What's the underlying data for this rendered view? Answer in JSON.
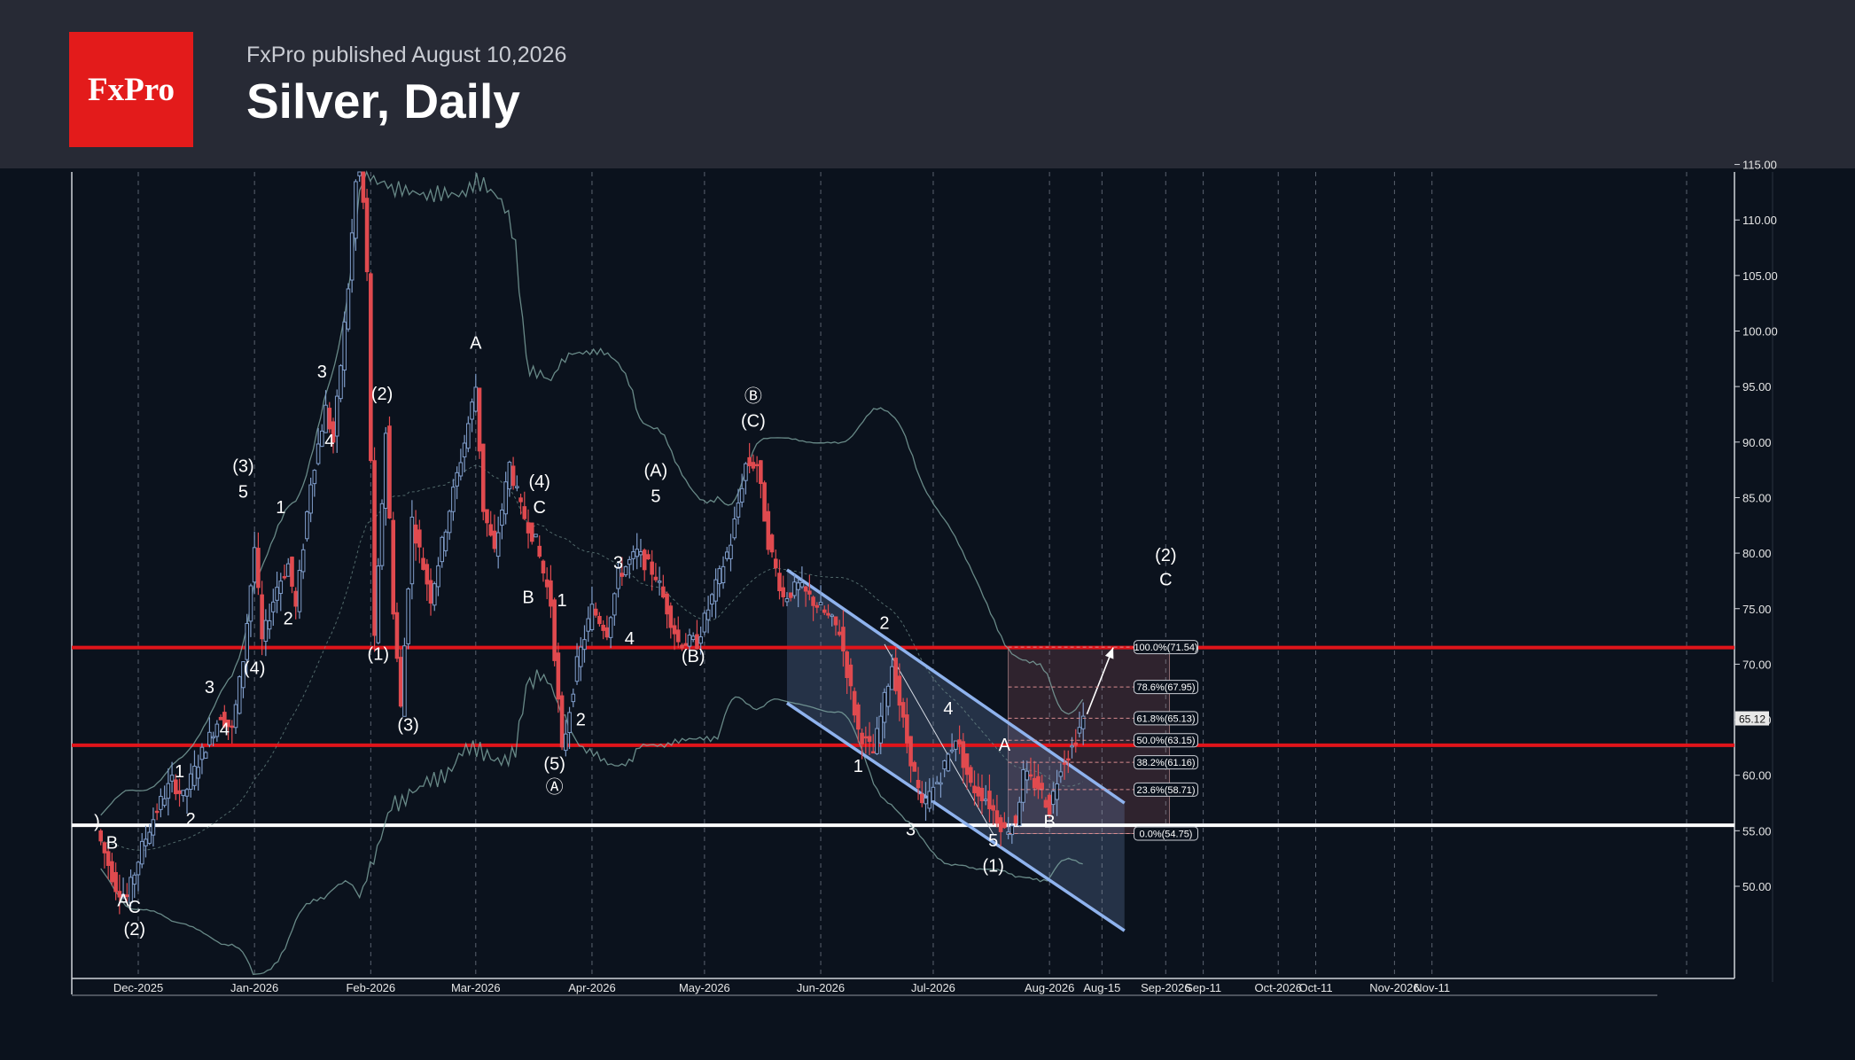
{
  "header": {
    "logo_text": "FxPro",
    "published": "FxPro published August 10,2026",
    "title": "Silver, Daily"
  },
  "colors": {
    "background": "#0b121d",
    "header": "#272a35",
    "brand_red": "#e31b1b",
    "bull_candle": "#7f9cc9",
    "bear_candle": "#e04a4f",
    "level_red": "#e0141a",
    "level_white": "#ffffff",
    "channel": "#8fb3ee"
  },
  "chart_data": {
    "type": "candlestick",
    "title": "Silver, Daily",
    "ylim": [
      45,
      117.5
    ],
    "y_ticks": [
      "115.00",
      "110.00",
      "105.00",
      "100.00",
      "95.00",
      "90.00",
      "85.00",
      "80.00",
      "75.00",
      "70.00",
      "65.00",
      "60.00",
      "55.00",
      "50.00"
    ],
    "x_ticks": [
      {
        "label": "Dec-2025",
        "date": "2025-12-01"
      },
      {
        "label": "Jan-2026",
        "date": "2026-01-01"
      },
      {
        "label": "Feb-2026",
        "date": "2026-02-01"
      },
      {
        "label": "Mar-2026",
        "date": "2026-03-01"
      },
      {
        "label": "Apr-2026",
        "date": "2026-04-01"
      },
      {
        "label": "May-2026",
        "date": "2026-05-01"
      },
      {
        "label": "Jun-2026",
        "date": "2026-06-01"
      },
      {
        "label": "Jul-2026",
        "date": "2026-07-01"
      },
      {
        "label": "Aug-2026",
        "date": "2026-08-01"
      },
      {
        "label": "Aug-15",
        "date": "2026-08-15"
      },
      {
        "label": "Sep-2026",
        "date": "2026-09-01"
      },
      {
        "label": "Sep-11",
        "date": "2026-09-11"
      },
      {
        "label": "Oct-2026",
        "date": "2026-10-01"
      },
      {
        "label": "Oct-11",
        "date": "2026-10-11"
      },
      {
        "label": "Nov-2026",
        "date": "2026-11-01"
      },
      {
        "label": "Nov-11",
        "date": "2026-11-11"
      }
    ],
    "price_path": [
      [
        "2025-11-21",
        54
      ],
      [
        "2025-11-25",
        50
      ],
      [
        "2025-11-28",
        49
      ],
      [
        "2025-12-02",
        53.5
      ],
      [
        "2025-12-06",
        57
      ],
      [
        "2025-12-10",
        59.5
      ],
      [
        "2025-12-13",
        58
      ],
      [
        "2025-12-18",
        62
      ],
      [
        "2025-12-23",
        65.5
      ],
      [
        "2025-12-26",
        64
      ],
      [
        "2025-12-29",
        70.5
      ],
      [
        "2026-01-01",
        80.5
      ],
      [
        "2026-01-03",
        72
      ],
      [
        "2026-01-07",
        77
      ],
      [
        "2026-01-10",
        79
      ],
      [
        "2026-01-12",
        75
      ],
      [
        "2026-01-16",
        86.5
      ],
      [
        "2026-01-20",
        93
      ],
      [
        "2026-01-22",
        90
      ],
      [
        "2026-01-26",
        104
      ],
      [
        "2026-01-29",
        118
      ],
      [
        "2026-01-31",
        105
      ],
      [
        "2026-02-02",
        72
      ],
      [
        "2026-02-05",
        91
      ],
      [
        "2026-02-07",
        75
      ],
      [
        "2026-02-09",
        66
      ],
      [
        "2026-02-12",
        83
      ],
      [
        "2026-02-17",
        76
      ],
      [
        "2026-02-22",
        84
      ],
      [
        "2026-02-26",
        90
      ],
      [
        "2026-03-01",
        95
      ],
      [
        "2026-03-03",
        84
      ],
      [
        "2026-03-06",
        80
      ],
      [
        "2026-03-10",
        88
      ],
      [
        "2026-03-13",
        84
      ],
      [
        "2026-03-17",
        81
      ],
      [
        "2026-03-21",
        75.5
      ],
      [
        "2026-03-24",
        62
      ],
      [
        "2026-03-28",
        70
      ],
      [
        "2026-04-01",
        75
      ],
      [
        "2026-04-05",
        73
      ],
      [
        "2026-04-08",
        78
      ],
      [
        "2026-04-13",
        80
      ],
      [
        "2026-04-18",
        78
      ],
      [
        "2026-04-24",
        72
      ],
      [
        "2026-04-29",
        72
      ],
      [
        "2026-05-03",
        76
      ],
      [
        "2026-05-08",
        81
      ],
      [
        "2026-05-12",
        88
      ],
      [
        "2026-05-15",
        88
      ],
      [
        "2026-05-18",
        81
      ],
      [
        "2026-05-22",
        76
      ],
      [
        "2026-05-26",
        77
      ],
      [
        "2026-06-01",
        75
      ],
      [
        "2026-06-06",
        73
      ],
      [
        "2026-06-11",
        64
      ],
      [
        "2026-06-15",
        62
      ],
      [
        "2026-06-20",
        70
      ],
      [
        "2026-06-24",
        63
      ],
      [
        "2026-06-28",
        57
      ],
      [
        "2026-07-03",
        60
      ],
      [
        "2026-07-07",
        63.5
      ],
      [
        "2026-07-11",
        59
      ],
      [
        "2026-07-15",
        58
      ],
      [
        "2026-07-20",
        55
      ],
      [
        "2026-07-23",
        56
      ],
      [
        "2026-07-25",
        60
      ],
      [
        "2026-07-29",
        59
      ],
      [
        "2026-08-01",
        57
      ],
      [
        "2026-08-04",
        61
      ],
      [
        "2026-08-07",
        62.5
      ],
      [
        "2026-08-10",
        65.12
      ]
    ],
    "levels": [
      {
        "price": 71.5,
        "color": "red"
      },
      {
        "price": 62.7,
        "color": "red"
      },
      {
        "price": 55.5,
        "color": "white"
      }
    ],
    "current_price": "65.12",
    "fibonacci": [
      {
        "label": "100.0%(71.54)",
        "price": 71.54
      },
      {
        "label": "78.6%(67.95)",
        "price": 67.95
      },
      {
        "label": "61.8%(65.13)",
        "price": 65.13
      },
      {
        "label": "50.0%(63.15)",
        "price": 63.15
      },
      {
        "label": "38.2%(61.16)",
        "price": 61.16
      },
      {
        "label": "23.6%(58.71)",
        "price": 58.71
      },
      {
        "label": "0.0%(54.75)",
        "price": 54.75
      }
    ],
    "fib_zone": {
      "start": "2026-07-21",
      "end": "2026-09-02",
      "top": 71.54,
      "bottom": 54.75
    },
    "channel": {
      "upper": [
        [
          "2026-05-23",
          78.5
        ],
        [
          "2026-08-21",
          57.5
        ]
      ],
      "lower": [
        [
          "2026-05-23",
          66.5
        ],
        [
          "2026-08-21",
          46
        ]
      ]
    },
    "projection_arrow": [
      [
        "2026-08-11",
        65.5
      ],
      [
        "2026-08-18",
        71.5
      ]
    ],
    "wave_labels": [
      {
        "text": ")",
        "date": "2025-11-20",
        "price": 55.3
      },
      {
        "text": "B",
        "date": "2025-11-24",
        "price": 53.4
      },
      {
        "text": "A",
        "date": "2025-11-27",
        "price": 48.2
      },
      {
        "text": "C",
        "date": "2025-11-30",
        "price": 47.6
      },
      {
        "text": "(2)",
        "date": "2025-11-30",
        "price": 45.6
      },
      {
        "text": "1",
        "date": "2025-12-12",
        "price": 59.8
      },
      {
        "text": "2",
        "date": "2025-12-15",
        "price": 55.5
      },
      {
        "text": "3",
        "date": "2025-12-20",
        "price": 67.4
      },
      {
        "text": "4",
        "date": "2025-12-24",
        "price": 63.6
      },
      {
        "text": "(3)",
        "date": "2025-12-29",
        "price": 87.3
      },
      {
        "text": "5",
        "date": "2025-12-29",
        "price": 85
      },
      {
        "text": "(4)",
        "date": "2026-01-01",
        "price": 69.1
      },
      {
        "text": "1",
        "date": "2026-01-08",
        "price": 83.6
      },
      {
        "text": "2",
        "date": "2026-01-10",
        "price": 73.6
      },
      {
        "text": "3",
        "date": "2026-01-19",
        "price": 95.8
      },
      {
        "text": "4",
        "date": "2026-01-21",
        "price": 89.6
      },
      {
        "text": "(2)",
        "date": "2026-02-04",
        "price": 93.8
      },
      {
        "text": "(1)",
        "date": "2026-02-03",
        "price": 70.4
      },
      {
        "text": "(3)",
        "date": "2026-02-11",
        "price": 64
      },
      {
        "text": "A",
        "date": "2026-03-01",
        "price": 98.4
      },
      {
        "text": "(4)",
        "date": "2026-03-18",
        "price": 85.9
      },
      {
        "text": "C",
        "date": "2026-03-18",
        "price": 83.6
      },
      {
        "text": "B",
        "date": "2026-03-15",
        "price": 75.5
      },
      {
        "text": "1",
        "date": "2026-03-24",
        "price": 75.2
      },
      {
        "text": "2",
        "date": "2026-03-29",
        "price": 64.5
      },
      {
        "text": "(5)",
        "date": "2026-03-22",
        "price": 60.5
      },
      {
        "text": "Ⓐ",
        "date": "2026-03-22",
        "price": 58.4
      },
      {
        "text": "3",
        "date": "2026-04-08",
        "price": 78.6
      },
      {
        "text": "4",
        "date": "2026-04-11",
        "price": 71.8
      },
      {
        "text": "(A)",
        "date": "2026-04-18",
        "price": 86.9
      },
      {
        "text": "5",
        "date": "2026-04-18",
        "price": 84.6
      },
      {
        "text": "(B)",
        "date": "2026-04-28",
        "price": 70.2
      },
      {
        "text": "Ⓑ",
        "date": "2026-05-14",
        "price": 93.6
      },
      {
        "text": "(C)",
        "date": "2026-05-14",
        "price": 91.4
      },
      {
        "text": "1",
        "date": "2026-06-11",
        "price": 60.3
      },
      {
        "text": "2",
        "date": "2026-06-18",
        "price": 73.2
      },
      {
        "text": "3",
        "date": "2026-06-25",
        "price": 54.6
      },
      {
        "text": "4",
        "date": "2026-07-05",
        "price": 65.5
      },
      {
        "text": "5",
        "date": "2026-07-17",
        "price": 53.6
      },
      {
        "text": "(1)",
        "date": "2026-07-17",
        "price": 51.3
      },
      {
        "text": "A",
        "date": "2026-07-20",
        "price": 62.2
      },
      {
        "text": "B",
        "date": "2026-08-01",
        "price": 55.3
      },
      {
        "text": "(2)",
        "date": "2026-09-01",
        "price": 79.3
      },
      {
        "text": "C",
        "date": "2026-09-01",
        "price": 77.1
      }
    ]
  }
}
